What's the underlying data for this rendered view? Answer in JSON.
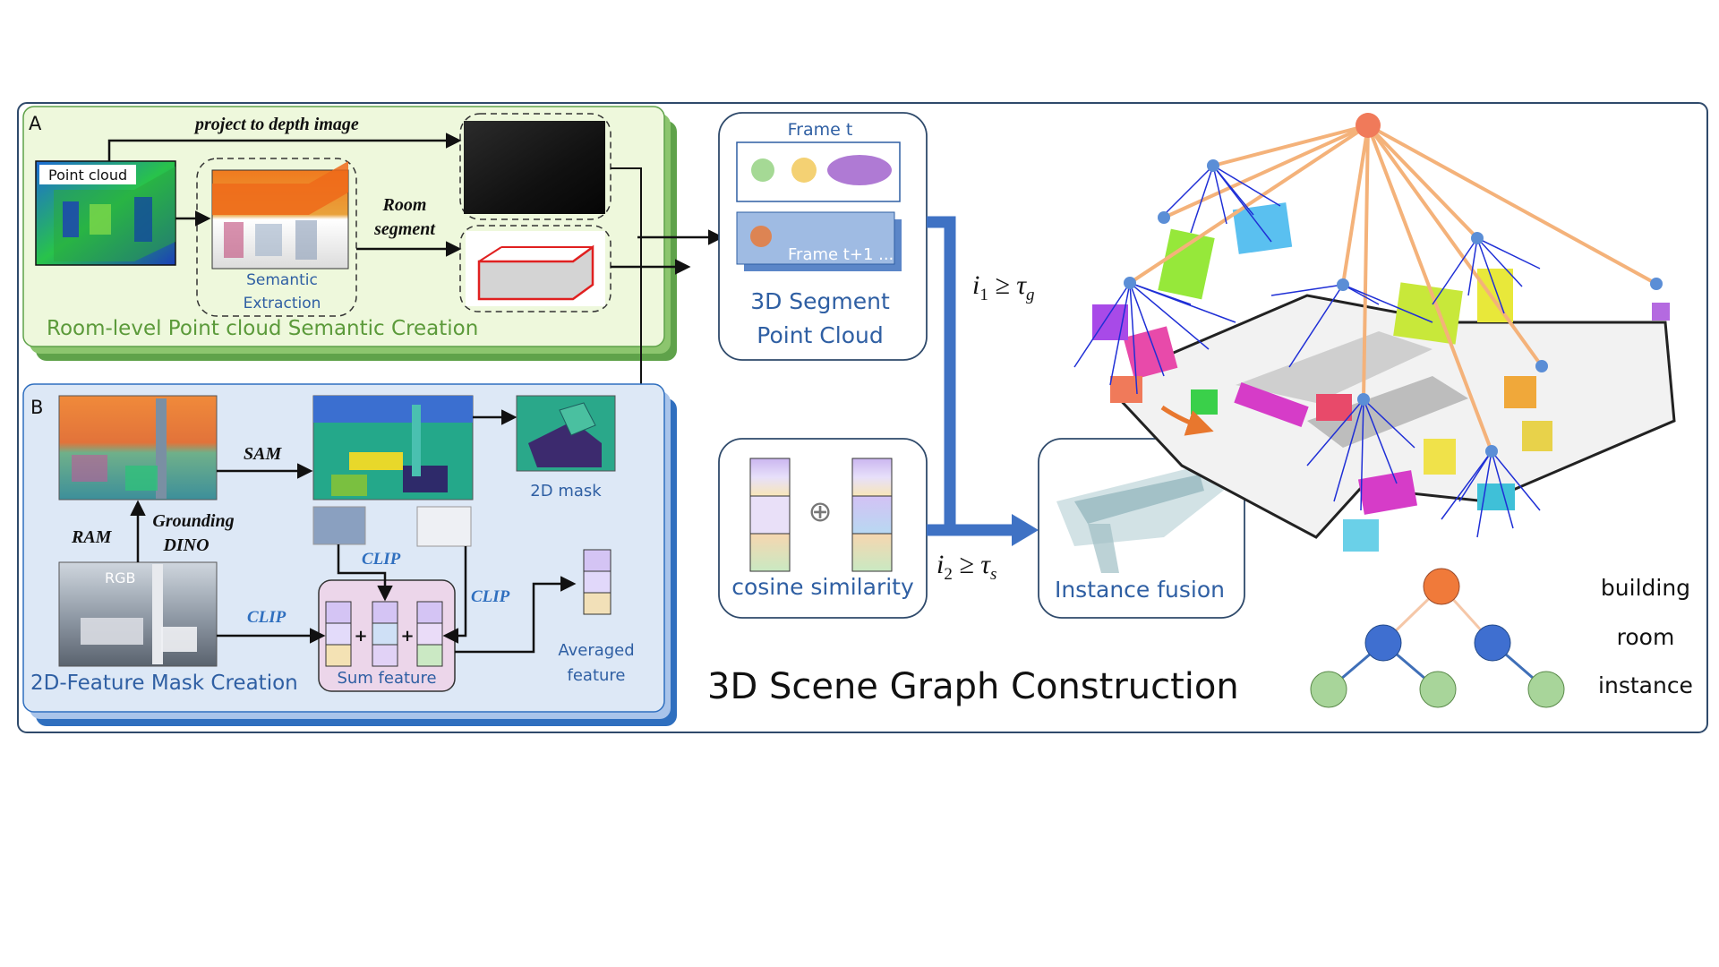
{
  "colors": {
    "frame_border": "#2f4a6b",
    "panel_a_fill": "#eef8dc",
    "panel_a_shadow": "#5fa24a",
    "panel_a_title": "#5b9a3a",
    "panel_b_fill": "#dde8f6",
    "panel_b_shadow": "#2f6fbf",
    "panel_b_title": "#2f5fa3",
    "blue_text": "#2f5fa3",
    "arrow_blue": "#3f72c4",
    "building_node": "#f07a5a",
    "room_node": "#5b8ed6",
    "instance_node": "#a8d59a",
    "room_edge": "#1f2fd6",
    "building_edge": "#f4b27a"
  },
  "panel_a": {
    "letter": "A",
    "title": "Room-level Point cloud Semantic Creation",
    "point_cloud_label": "Point cloud",
    "project_label": "project to depth image",
    "room_segment_line1": "Room",
    "room_segment_line2": "segment",
    "semantic_line1": "Semantic",
    "semantic_line2": "Extraction"
  },
  "panel_b": {
    "letter": "B",
    "title": "2D-Feature Mask Creation",
    "sam_label": "SAM",
    "ram_label": "RAM",
    "grounding_line1": "Grounding",
    "grounding_line2": "DINO",
    "rgb_label": "RGB",
    "clip_label_1": "CLIP",
    "clip_label_2": "CLIP",
    "clip_label_3": "CLIP",
    "mask_label": "2D mask",
    "sum_label": "Sum feature",
    "plus_1": "+",
    "plus_2": "+",
    "averaged_line1": "Averaged",
    "averaged_line2": "feature"
  },
  "segment": {
    "frame_t": "Frame t",
    "frame_t1": "Frame t+1 ...",
    "title_line1": "3D Segment",
    "title_line2": "Point Cloud"
  },
  "similarity": {
    "label": "cosine similarity",
    "oplus": "⊕"
  },
  "thresholds": {
    "i1": "i",
    "i1_sub": "1",
    "i1_rest": " ≥ τ",
    "i1_rest_sub": "g",
    "i2": "i",
    "i2_sub": "2",
    "i2_rest": " ≥ τ",
    "i2_rest_sub": "s"
  },
  "fusion": {
    "label": "Instance fusion"
  },
  "graph": {
    "title": "3D Scene Graph Construction",
    "legend_building": "building",
    "legend_room": "room",
    "legend_instance": "instance"
  }
}
